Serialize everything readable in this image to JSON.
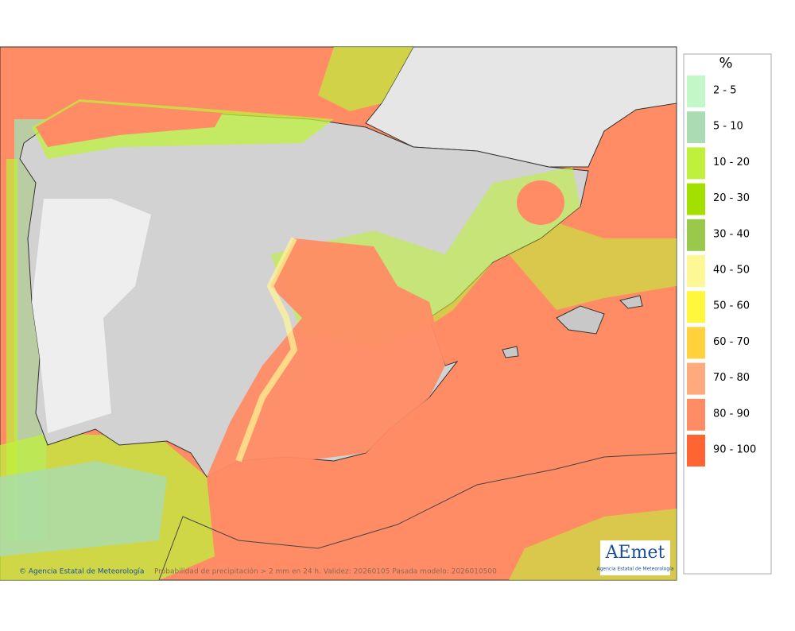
{
  "legend": {
    "title": "%",
    "items": [
      {
        "label": "2 - 5",
        "color": "#c2f7c8"
      },
      {
        "label": "5 - 10",
        "color": "#a9dcb2"
      },
      {
        "label": "10 - 20",
        "color": "#bff03c"
      },
      {
        "label": "20 - 30",
        "color": "#a3e000"
      },
      {
        "label": "30 - 40",
        "color": "#98c94a"
      },
      {
        "label": "40 - 50",
        "color": "#fff796"
      },
      {
        "label": "50 - 60",
        "color": "#fff73c"
      },
      {
        "label": "60 - 70",
        "color": "#ffd23c"
      },
      {
        "label": "70 - 80",
        "color": "#ffaa7d"
      },
      {
        "label": "80 - 90",
        "color": "#ff8c64"
      },
      {
        "label": "90 - 100",
        "color": "#ff6432"
      }
    ]
  },
  "footer": {
    "credit": "© Agencia Estatal de Meteorología",
    "caption": "Probabilidad de precipitación > 2 mm en 24 h. Validez: 20260105 Pasada modelo: 2026010500"
  },
  "logo": {
    "name": "AEmet",
    "subtitle": "Agencia Estatal de Meteorología"
  }
}
